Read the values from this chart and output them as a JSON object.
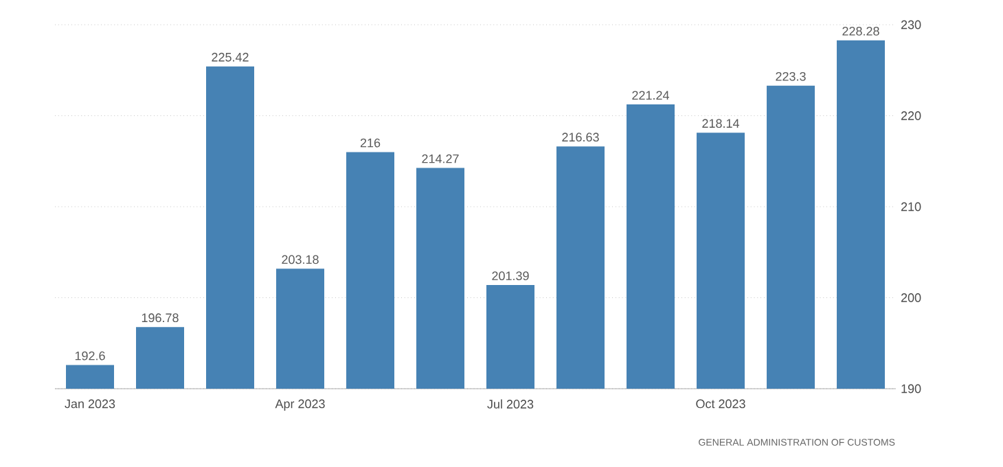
{
  "chart_data": {
    "type": "bar",
    "categories": [
      "Jan 2023",
      null,
      null,
      "Apr 2023",
      null,
      null,
      "Jul 2023",
      null,
      null,
      "Oct 2023",
      null,
      null
    ],
    "values": [
      192.6,
      196.78,
      225.42,
      203.18,
      216,
      214.27,
      201.39,
      216.63,
      221.24,
      218.14,
      223.3,
      228.28
    ],
    "color": "#4682b4",
    "ylim": [
      190,
      230
    ],
    "yticks": [
      190,
      200,
      210,
      220,
      230
    ],
    "grid": "y",
    "data_labels": true,
    "annotations": [
      "GENERAL ADMINISTRATION OF CUSTOMS"
    ]
  }
}
